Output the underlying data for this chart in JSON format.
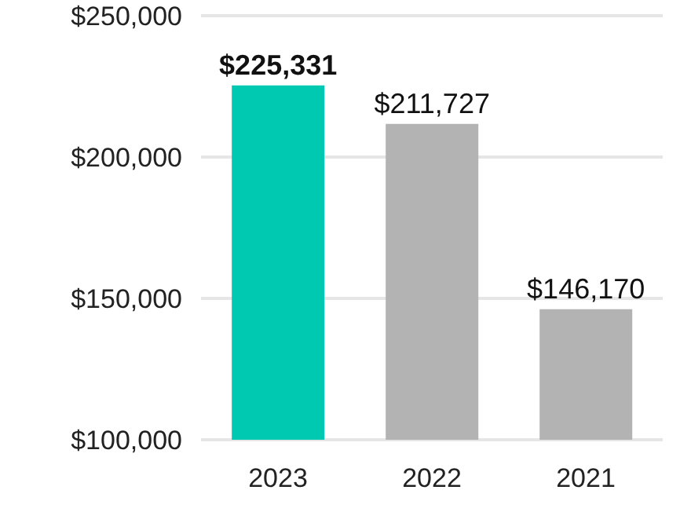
{
  "chart_data": {
    "type": "bar",
    "categories": [
      "2023",
      "2022",
      "2021"
    ],
    "values": [
      225331,
      211727,
      146170
    ],
    "colors": [
      "#00c9b1",
      "#b3b3b3",
      "#b3b3b3"
    ],
    "value_labels": [
      "$225,331",
      "$211,727",
      "$146,170"
    ],
    "ylim": [
      100000,
      250000
    ],
    "yticks": [
      {
        "value": 100000,
        "label": "$100,000"
      },
      {
        "value": 150000,
        "label": "$150,000"
      },
      {
        "value": 200000,
        "label": "$200,000"
      },
      {
        "value": 250000,
        "label": "$250,000"
      }
    ],
    "grid": "y"
  }
}
